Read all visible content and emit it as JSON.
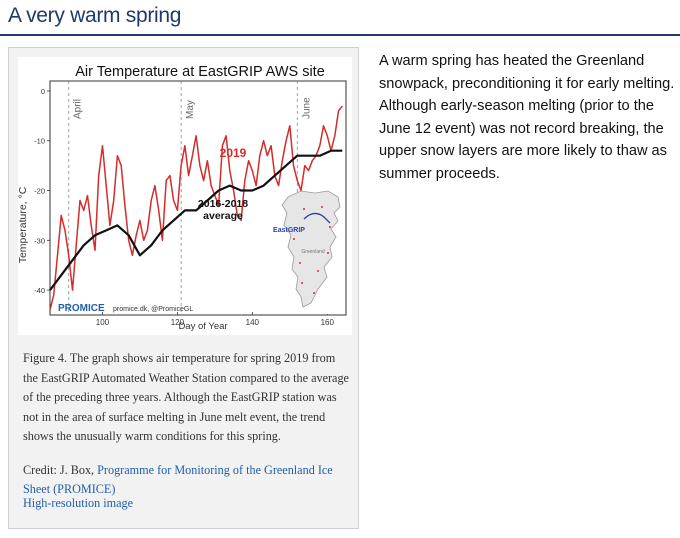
{
  "section": {
    "title": "A very warm spring"
  },
  "figure": {
    "caption": "Figure 4. The graph shows air temperature for spring 2019 from the EastGRIP Automated Weather Station compared to the average of the preceding three years. Although the EastGRIP station was not in the area of surface melting in June melt event, the trend shows the unusually warm conditions for this spring.",
    "credit_prefix": "Credit: J. Box, ",
    "credit_link": "Programme for Monitoring of the Greenland Ice Sheet (PROMICE)",
    "hires_link": "High-resolution image"
  },
  "side_text": "A warm spring has heated the Greenland snowpack, preconditioning it for early melting. Although early-season melting (prior to the June 12 event) was not record breaking, the upper snow layers are more likely to thaw as summer proceeds.",
  "chart_data": {
    "type": "line",
    "title": "Air Temperature at EastGRIP AWS site",
    "xlabel": "Day of Year",
    "ylabel": "Temperature, °C",
    "xlim": [
      86,
      165
    ],
    "ylim": [
      -45,
      2
    ],
    "x_ticks": [
      "100",
      "120",
      "140",
      "160"
    ],
    "y_ticks": [
      "0",
      "-10",
      "-20",
      "-30",
      "-40"
    ],
    "month_labels": [
      "April",
      "May",
      "June"
    ],
    "month_days": [
      91,
      121,
      152
    ],
    "series": [
      {
        "name": "2019",
        "color": "#d62b2b",
        "x": [
          86,
          87,
          88,
          89,
          90,
          91,
          92,
          93,
          94,
          95,
          96,
          97,
          98,
          99,
          100,
          101,
          102,
          103,
          104,
          105,
          106,
          107,
          108,
          109,
          110,
          111,
          112,
          113,
          114,
          115,
          116,
          117,
          118,
          119,
          120,
          121,
          122,
          123,
          124,
          125,
          126,
          127,
          128,
          129,
          130,
          131,
          132,
          133,
          134,
          135,
          136,
          137,
          138,
          139,
          140,
          141,
          142,
          143,
          144,
          145,
          146,
          147,
          148,
          149,
          150,
          151,
          152,
          153,
          154,
          155,
          156,
          157,
          158,
          159,
          160,
          161,
          162,
          163,
          164
        ],
        "values": [
          -44,
          -41,
          -33,
          -25,
          -28,
          -33,
          -40,
          -31,
          -22,
          -24,
          -21,
          -27,
          -32,
          -17,
          -11,
          -19,
          -27,
          -22,
          -13,
          -15,
          -23,
          -30,
          -33,
          -29,
          -26,
          -30,
          -28,
          -22,
          -19,
          -24,
          -30,
          -18,
          -17,
          -22,
          -24,
          -15,
          -11,
          -17,
          -13,
          -9,
          -15,
          -18,
          -14,
          -19,
          -21,
          -23,
          -11,
          -9,
          -16,
          -20,
          -25,
          -26,
          -18,
          -14,
          -16,
          -19,
          -13,
          -10,
          -13,
          -11,
          -17,
          -19,
          -14,
          -10,
          -7,
          -15,
          -18,
          -20,
          -15,
          -16,
          -14,
          -13,
          -11,
          -7,
          -9,
          -12,
          -9,
          -4,
          -3
        ]
      },
      {
        "name": "2016-2018 average",
        "color": "#111111",
        "x": [
          86,
          89,
          92,
          95,
          98,
          101,
          104,
          107,
          110,
          113,
          116,
          119,
          122,
          125,
          128,
          131,
          134,
          137,
          140,
          143,
          146,
          149,
          152,
          155,
          158,
          161,
          164
        ],
        "values": [
          -40,
          -37,
          -34,
          -31,
          -29,
          -28,
          -27,
          -29,
          -33,
          -31,
          -28,
          -26,
          -24,
          -24,
          -22,
          -20,
          -19,
          -20,
          -20,
          -19,
          -17,
          -15,
          -13,
          -13,
          -13,
          -12,
          -12
        ]
      }
    ],
    "annotations": {
      "series_2019_label": "2019",
      "average_label_line1": "2016-2018",
      "average_label_line2": "average",
      "promice_logo": "PROMICE",
      "source_text": "promice.dk, @PromiceGL",
      "map_station_label": "EastGRIP",
      "map_region_label": "Greenland"
    }
  }
}
